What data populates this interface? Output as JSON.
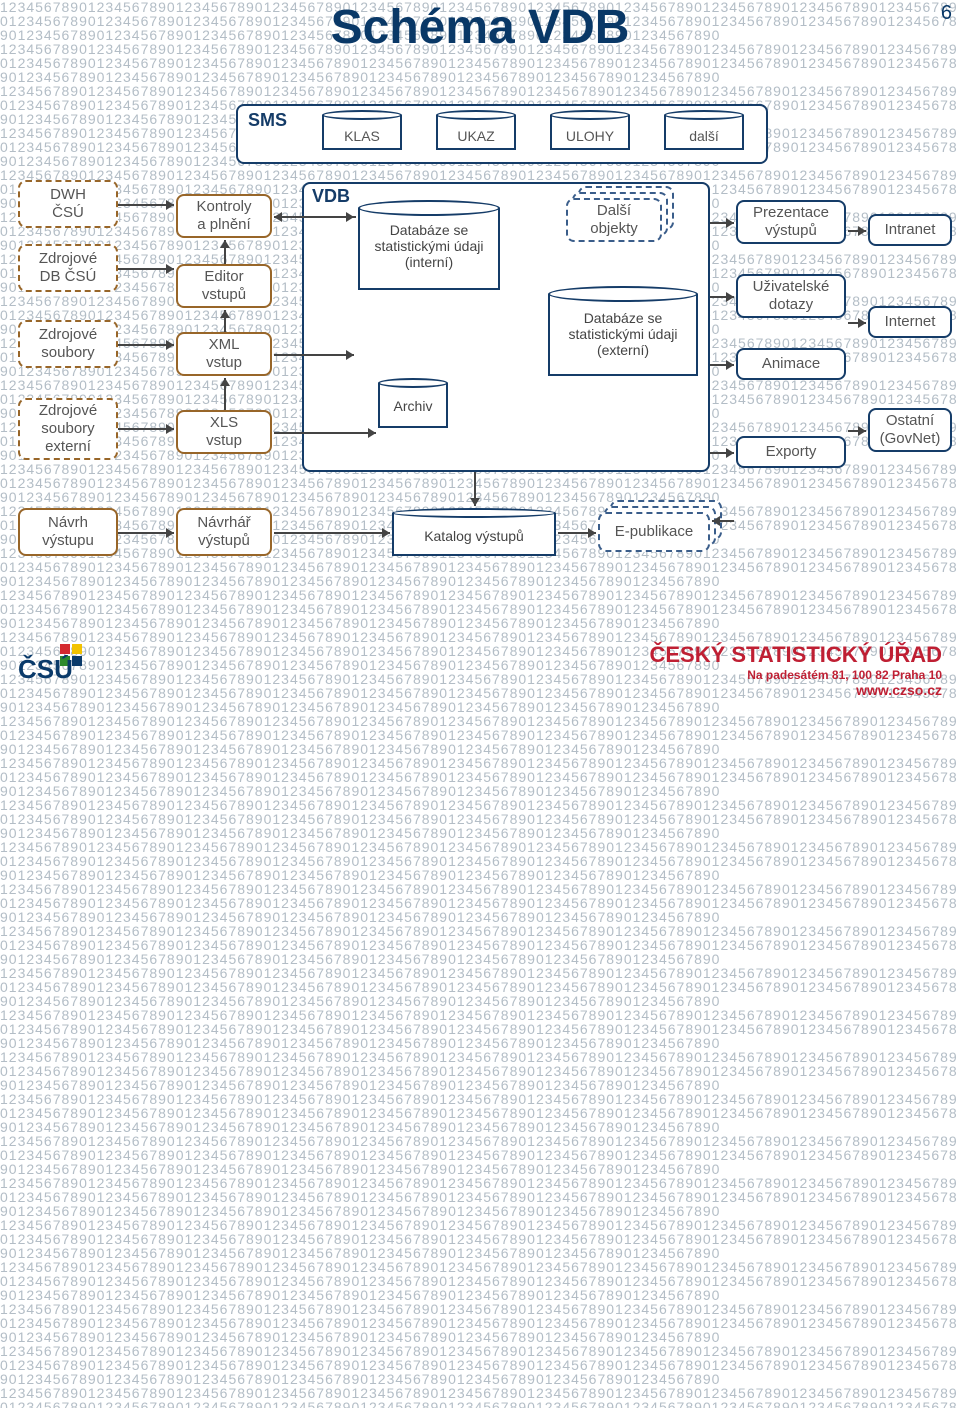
{
  "page": {
    "title": "Schéma VDB",
    "number": "6"
  },
  "colors": {
    "title": "#093867",
    "frame": "#153c68",
    "brown": "#986629",
    "gray_text": "#555555",
    "arrow": "#444444",
    "bg_digits": "#9aa8b4",
    "stacked": "#3a5d8a",
    "footer_red": "#bf1f33",
    "logo_blue": "#0a3a6a",
    "logo_red": "#d42a2f",
    "logo_green": "#2d8a2d",
    "logo_yellow": "#f2c200"
  },
  "sms": {
    "label": "SMS",
    "items": [
      "KLAS",
      "UKAZ",
      "ULOHY",
      "další"
    ]
  },
  "left_col": {
    "dwh": "DWH\nČSÚ",
    "db": "Zdrojové\nDB ČSÚ",
    "files": "Zdrojové\nsoubory",
    "files_ext": "Zdrojové\nsoubory\nexterní",
    "design": "Návrh\nvýstupu"
  },
  "inputs": {
    "kontroly": "Kontroly\na plnění",
    "editor": "Editor\nvstupů",
    "xml": "XML\nvstup",
    "xls": "XLS\nvstup",
    "designer": "Návrhář\nvýstupů"
  },
  "vdb": {
    "label": "VDB",
    "db_int": "Databáze se\nstatistickými údaji\n(interní)",
    "archive": "Archiv",
    "other_obj": "Další\nobjekty",
    "db_ext": "Databáze se\nstatistickými údaji\n(externí)",
    "catalog": "Katalog výstupů",
    "epub": "E-publikace"
  },
  "outputs": {
    "present": "Prezentace\nvýstupů",
    "queries": "Uživatelské\ndotazy",
    "anim": "Animace",
    "export": "Exporty"
  },
  "channels": {
    "intranet": "Intranet",
    "internet": "Internet",
    "govnet": "Ostatní\n(GovNet)"
  },
  "footer": {
    "org": "ČESKÝ STATISTICKÝ ÚŘAD",
    "addr": "Na padesátém 81, 100 82  Praha 10",
    "url": "www.czso.cz"
  },
  "bg_pattern": "1234567890"
}
